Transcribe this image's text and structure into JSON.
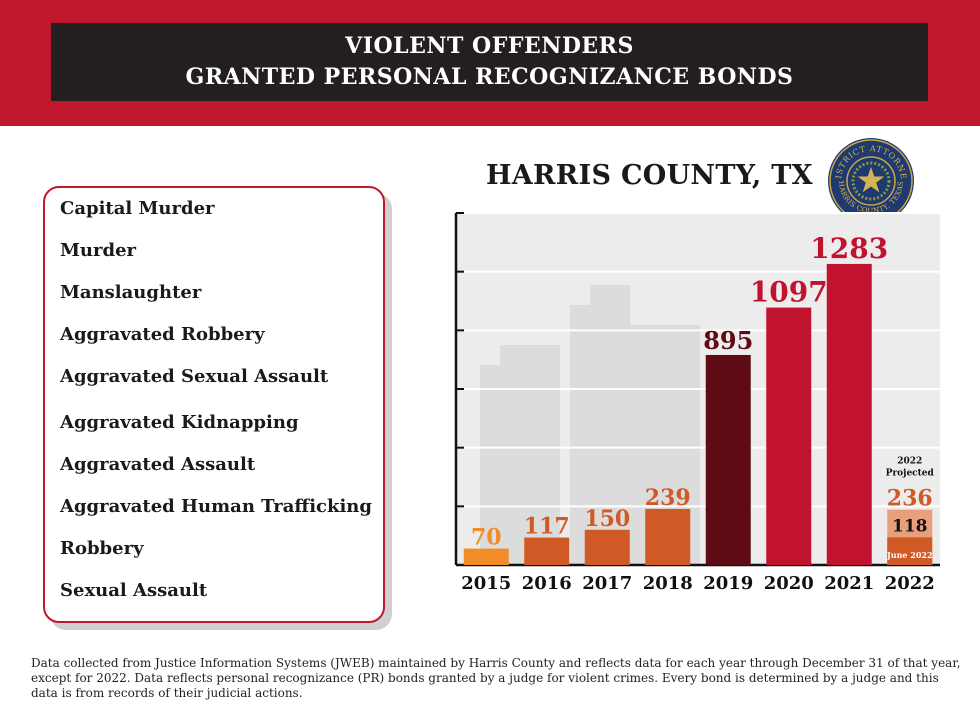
{
  "header": {
    "title_line1": "VIOLENT OFFENDERS",
    "title_line2": "GRANTED PERSONAL RECOGNIZANCE BONDS"
  },
  "subtitle": "HARRIS COUNTY, TX",
  "seal": {
    "text_top": "DISTRICT ATTORNEY",
    "text_bottom": "HARRIS COUNTY, TEXAS"
  },
  "crimes": [
    "Capital Murder",
    "Murder",
    "Manslaughter",
    "Aggravated Robbery",
    "Aggravated Sexual Assault",
    "Aggravated Kidnapping",
    "Aggravated Assault",
    "Aggravated Human Trafficking",
    "Robbery",
    "Sexual Assault"
  ],
  "chart_data": {
    "type": "bar",
    "title": "HARRIS COUNTY, TX",
    "categories": [
      "2015",
      "2016",
      "2017",
      "2018",
      "2019",
      "2020",
      "2021",
      "2022"
    ],
    "values": [
      70,
      117,
      150,
      239,
      895,
      1097,
      1283,
      236
    ],
    "colors": [
      "#f28c28",
      "#cf5a25",
      "#cf5a25",
      "#cf5a25",
      "#5e0b15",
      "#c1122f",
      "#c1122f",
      "#e8a07c"
    ],
    "label_colors": [
      "#f28c28",
      "#cf5a25",
      "#cf5a25",
      "#cf5a25",
      "#5e0b15",
      "#c1122f",
      "#c1122f",
      "#cf5a25"
    ],
    "ylim": [
      0,
      1500
    ],
    "grid": true,
    "projected_2022": {
      "header_line1": "2022",
      "header_line2": "Projected",
      "actual_value": 118,
      "actual_label": "118",
      "actual_note": "June 2022",
      "actual_color": "#cf5a25"
    }
  },
  "footnote": "Data collected from Justice Information Systems (JWEB) maintained by Harris County and reflects data for each year through December 31 of that year, except for 2022. Data reflects personal recognizance (PR) bonds granted by a judge for violent crimes. Every bond is determined by a judge and this data is from records of their judicial actions."
}
